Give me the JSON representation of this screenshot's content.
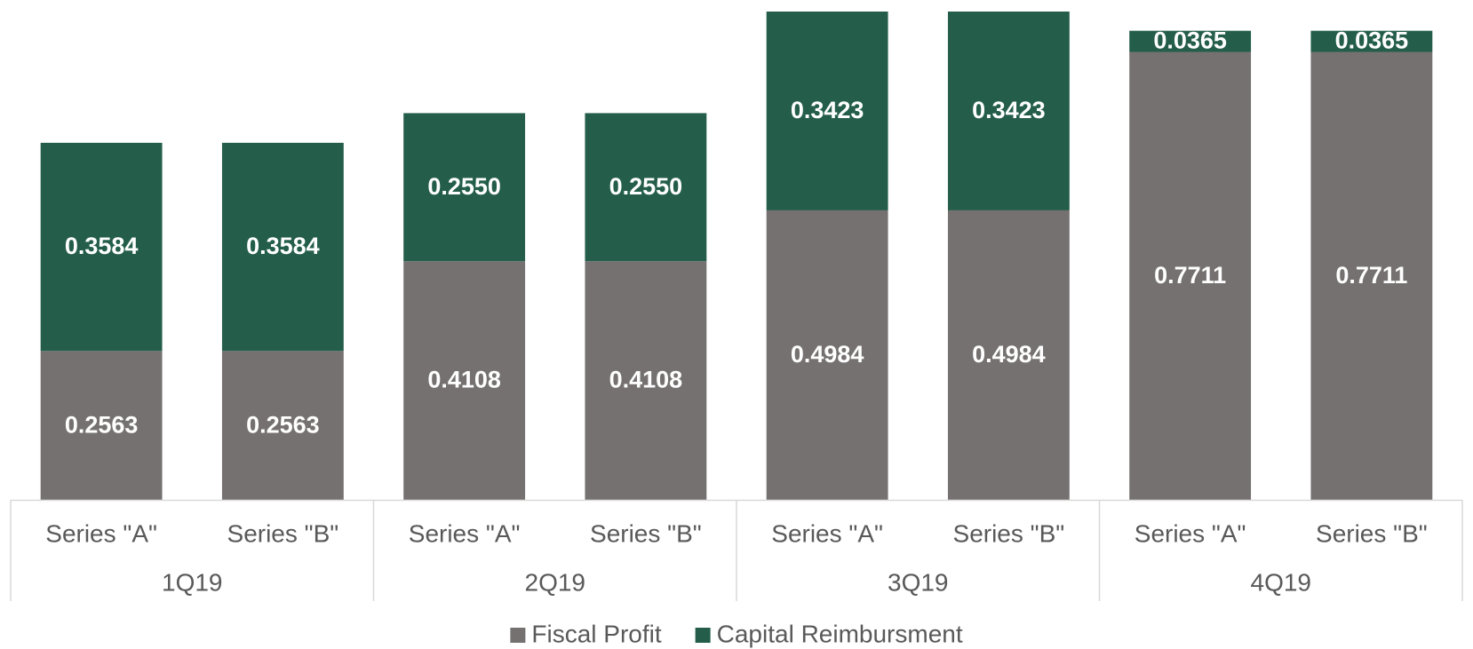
{
  "chart_data": {
    "type": "stacked-bar",
    "categories": [
      "Series \"A\"",
      "Series \"B\"",
      "Series \"A\"",
      "Series \"B\"",
      "Series \"A\"",
      "Series \"B\"",
      "Series \"A\"",
      "Series \"B\""
    ],
    "groups": [
      "1Q19",
      "2Q19",
      "3Q19",
      "4Q19"
    ],
    "series": [
      {
        "name": "Fiscal Profit",
        "color": "#767171",
        "values": [
          0.2563,
          0.2563,
          0.4108,
          0.4108,
          0.4984,
          0.4984,
          0.7711,
          0.7711
        ],
        "value_labels": [
          "0.2563",
          "0.2563",
          "0.4108",
          "0.4108",
          "0.4984",
          "0.4984",
          "0.7711",
          "0.7711"
        ]
      },
      {
        "name": "Capital Reimbursment",
        "color": "#245E4A",
        "values": [
          0.3584,
          0.3584,
          0.255,
          0.255,
          0.3423,
          0.3423,
          0.0365,
          0.0365
        ],
        "value_labels": [
          "0.3584",
          "0.3584",
          "0.2550",
          "0.2550",
          "0.3423",
          "0.3423",
          "0.0365",
          "0.0365"
        ]
      }
    ],
    "legend": "bottom"
  }
}
